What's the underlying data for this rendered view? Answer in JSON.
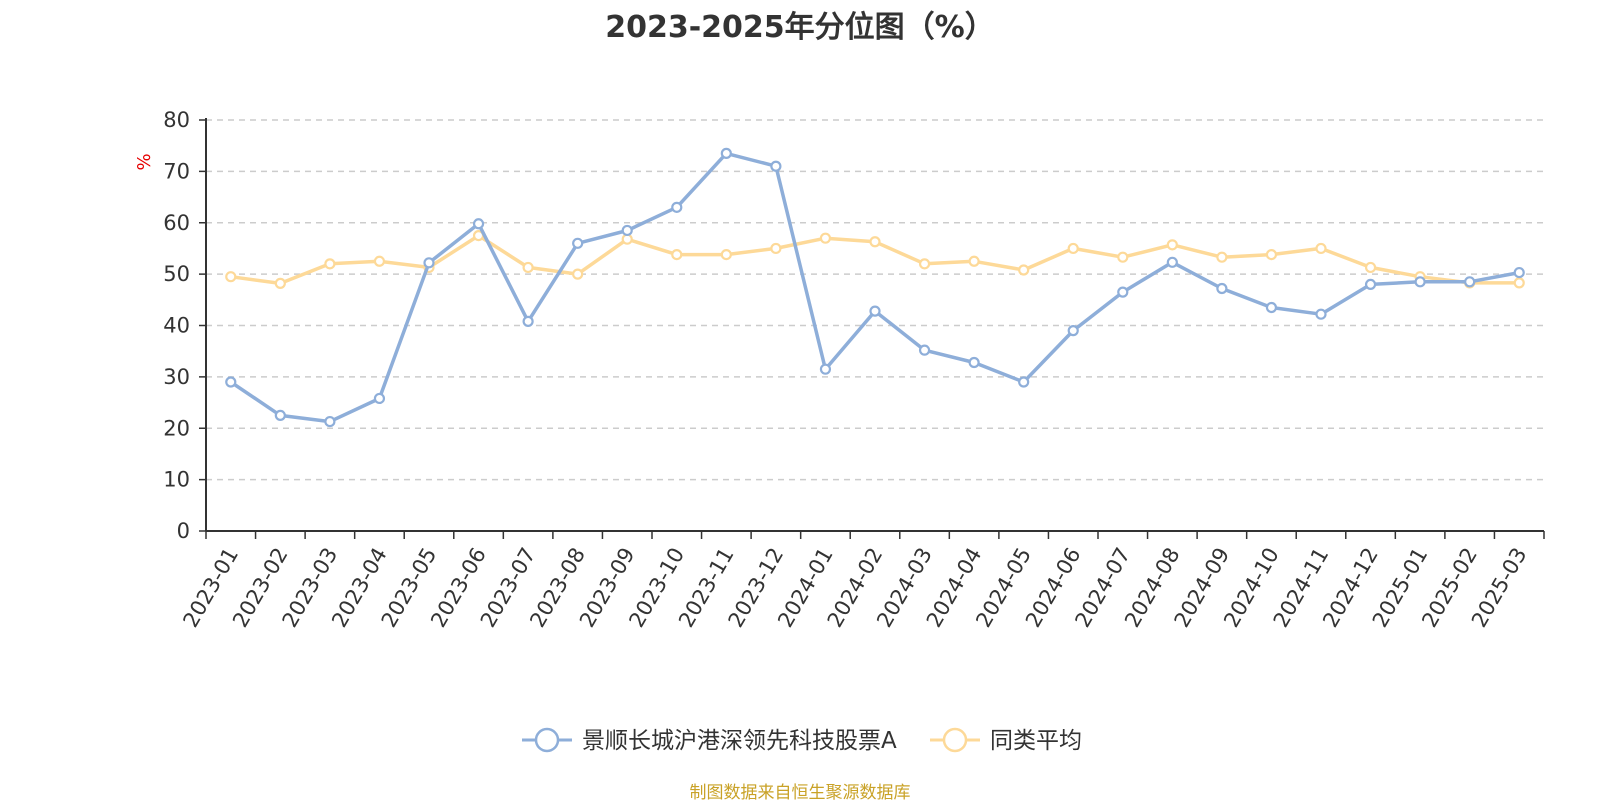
{
  "title": "2023-2025年分位图（%）",
  "source": "制图数据来自恒生聚源数据库",
  "colors": {
    "series1": "#8eaed9",
    "series2": "#fdd998",
    "grid": "#cccccc",
    "axis": "#333333",
    "unit": "#e60000",
    "source": "#c9a227"
  },
  "chart_data": {
    "type": "line",
    "ylabel": "%",
    "ylim": [
      0,
      80
    ],
    "yticks": [
      0,
      10,
      20,
      30,
      40,
      50,
      60,
      70,
      80
    ],
    "grid": "horizontal dashed",
    "legend": "bottom-center",
    "categories": [
      "2023-01",
      "2023-02",
      "2023-03",
      "2023-04",
      "2023-05",
      "2023-06",
      "2023-07",
      "2023-08",
      "2023-09",
      "2023-10",
      "2023-11",
      "2023-12",
      "2024-01",
      "2024-02",
      "2024-03",
      "2024-04",
      "2024-05",
      "2024-06",
      "2024-07",
      "2024-08",
      "2024-09",
      "2024-10",
      "2024-11",
      "2024-12",
      "2025-01",
      "2025-02",
      "2025-03"
    ],
    "series": [
      {
        "name": "景顺长城沪港深领先科技股票A",
        "values": [
          29.0,
          22.5,
          21.3,
          25.8,
          52.2,
          59.8,
          40.8,
          56.0,
          58.5,
          63.0,
          73.5,
          71.0,
          31.5,
          42.8,
          35.2,
          32.8,
          29.0,
          39.0,
          46.5,
          52.3,
          47.2,
          43.5,
          42.2,
          48.0,
          48.5,
          48.5,
          50.3
        ]
      },
      {
        "name": "同类平均",
        "values": [
          49.5,
          48.2,
          52.0,
          52.5,
          51.3,
          57.5,
          51.3,
          50.0,
          56.8,
          53.8,
          53.8,
          55.0,
          57.0,
          56.3,
          52.0,
          52.5,
          50.8,
          55.0,
          53.3,
          55.7,
          53.3,
          53.8,
          55.0,
          51.3,
          49.5,
          48.3,
          48.3
        ]
      }
    ]
  }
}
